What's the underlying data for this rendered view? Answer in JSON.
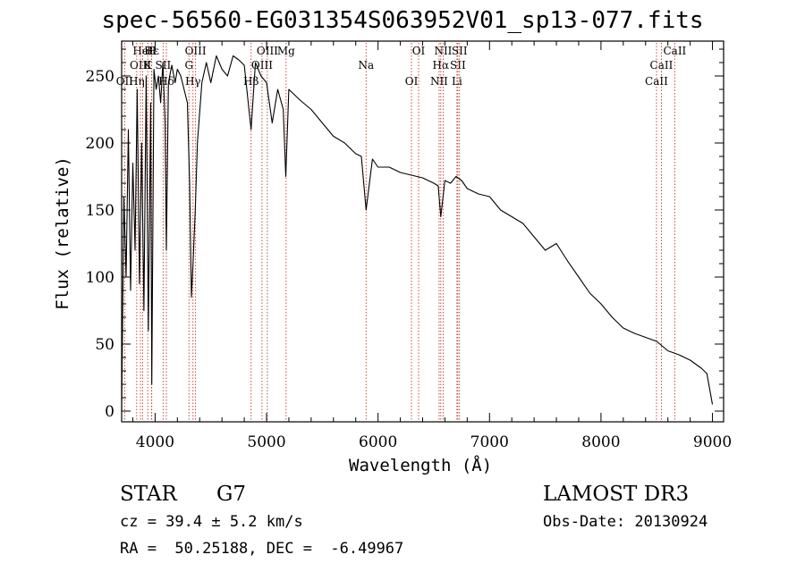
{
  "title": "spec-56560-EG031354S063952V01_sp13-077.fits",
  "info": {
    "object_type": "STAR",
    "subclass": "G7",
    "survey": "LAMOST DR3",
    "cz": "cz = 39.4 ± 5.2 km/s",
    "obs_date": "Obs-Date: 20130924",
    "coords": "RA =  50.25188, DEC =  -6.49967"
  },
  "colors": {
    "spectrum": "#000000",
    "line_marker": "#c0392b",
    "axis": "#000000"
  },
  "chart_data": {
    "type": "line",
    "title": "spec-56560-EG031354S063952V01_sp13-077.fits",
    "xlabel": "Wavelength (Å)",
    "ylabel": "Flux (relative)",
    "xlim": [
      3700,
      9100
    ],
    "ylim": [
      -8,
      276
    ],
    "xticks": [
      4000,
      5000,
      6000,
      7000,
      8000,
      9000
    ],
    "yticks": [
      0,
      50,
      100,
      150,
      200,
      250
    ],
    "series": [
      {
        "name": "flux",
        "x": [
          3700,
          3720,
          3740,
          3760,
          3780,
          3800,
          3820,
          3840,
          3860,
          3880,
          3900,
          3920,
          3940,
          3960,
          3970,
          3990,
          4010,
          4030,
          4050,
          4070,
          4090,
          4101,
          4120,
          4150,
          4180,
          4200,
          4230,
          4260,
          4290,
          4310,
          4326,
          4340,
          4360,
          4380,
          4420,
          4460,
          4500,
          4550,
          4600,
          4650,
          4700,
          4750,
          4800,
          4861,
          4900,
          4950,
          5000,
          5050,
          5100,
          5150,
          5172,
          5200,
          5300,
          5400,
          5500,
          5600,
          5700,
          5800,
          5850,
          5893,
          5950,
          6000,
          6100,
          6200,
          6300,
          6400,
          6500,
          6540,
          6563,
          6600,
          6650,
          6700,
          6750,
          6800,
          6900,
          7000,
          7100,
          7200,
          7300,
          7400,
          7500,
          7600,
          7700,
          7800,
          7900,
          8000,
          8100,
          8200,
          8300,
          8400,
          8500,
          8600,
          8700,
          8800,
          8900,
          8950,
          9000
        ],
        "values": [
          0,
          160,
          100,
          210,
          90,
          185,
          120,
          240,
          95,
          200,
          75,
          250,
          60,
          230,
          20,
          255,
          240,
          250,
          230,
          260,
          215,
          120,
          245,
          258,
          245,
          255,
          250,
          240,
          230,
          170,
          85,
          110,
          150,
          200,
          245,
          260,
          245,
          265,
          255,
          250,
          265,
          262,
          258,
          210,
          260,
          250,
          245,
          215,
          240,
          225,
          175,
          240,
          232,
          225,
          215,
          205,
          200,
          192,
          190,
          150,
          188,
          182,
          182,
          178,
          176,
          174,
          170,
          168,
          145,
          172,
          170,
          175,
          172,
          166,
          162,
          160,
          150,
          145,
          140,
          130,
          120,
          125,
          112,
          100,
          88,
          80,
          70,
          62,
          58,
          55,
          52,
          45,
          42,
          38,
          32,
          28,
          5
        ]
      }
    ],
    "lines": [
      {
        "label": "Hε",
        "wl": 3970
      },
      {
        "label": "K",
        "wl": 3934
      },
      {
        "label": "Hδ",
        "wl": 4101
      },
      {
        "label": "OIII",
        "wl": 4363
      },
      {
        "label": "OIII",
        "wl": 4959
      },
      {
        "label": "OII",
        "wl": 3727
      },
      {
        "label": "HeI",
        "wl": 3889
      },
      {
        "label": "SII",
        "wl": 4072
      },
      {
        "label": "Hγ",
        "wl": 4340
      },
      {
        "label": "OIII",
        "wl": 5007
      },
      {
        "label": "OIII",
        "wl": 3869
      },
      {
        "label": "Hη",
        "wl": 3835
      },
      {
        "label": "H",
        "wl": 3968
      },
      {
        "label": "G",
        "wl": 4304
      },
      {
        "label": "Hβ",
        "wl": 4861
      },
      {
        "label": "Mg",
        "wl": 5175
      },
      {
        "label": "Na",
        "wl": 5893
      },
      {
        "label": "OI",
        "wl": 6300
      },
      {
        "label": "OI",
        "wl": 6364
      },
      {
        "label": "Hα",
        "wl": 6563
      },
      {
        "label": "NII",
        "wl": 6548
      },
      {
        "label": "NII",
        "wl": 6584
      },
      {
        "label": "SII",
        "wl": 6716
      },
      {
        "label": "Li",
        "wl": 6708
      },
      {
        "label": "SII",
        "wl": 6731
      },
      {
        "label": "CaII",
        "wl": 8542
      },
      {
        "label": "CaII",
        "wl": 8498
      },
      {
        "label": "CaII",
        "wl": 8662
      }
    ]
  }
}
